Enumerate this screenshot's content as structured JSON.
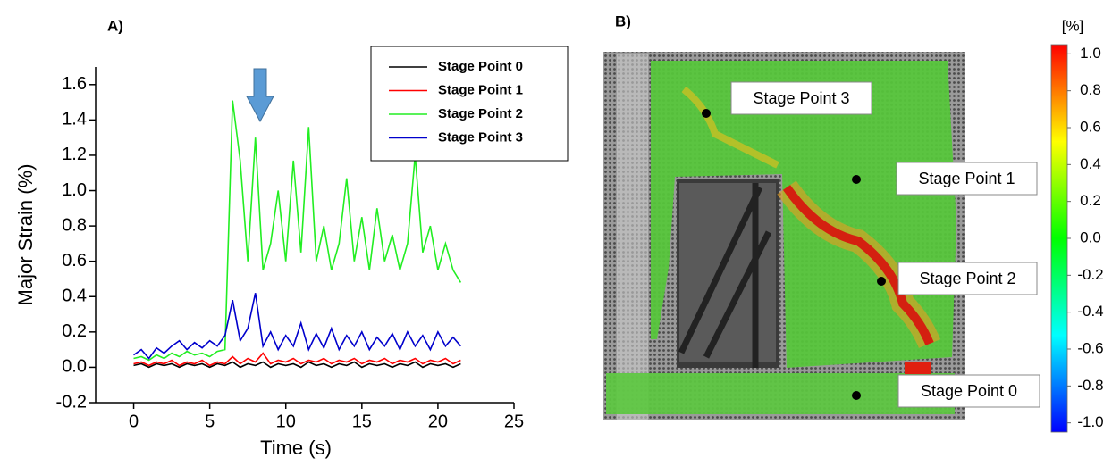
{
  "chart_data": [
    {
      "type": "line",
      "label": "A)",
      "xlabel": "Time (s)",
      "ylabel": "Major Strain (%)",
      "x": [
        0,
        0.5,
        1,
        1.5,
        2,
        2.5,
        3,
        3.5,
        4,
        4.5,
        5,
        5.5,
        6,
        6.5,
        7,
        7.5,
        8,
        8.5,
        9,
        9.5,
        10,
        10.5,
        11,
        11.5,
        12,
        12.5,
        13,
        13.5,
        14,
        14.5,
        15,
        15.5,
        16,
        16.5,
        17,
        17.5,
        18,
        18.5,
        19,
        19.5,
        20,
        20.5,
        21,
        21.5
      ],
      "series": [
        {
          "name": "Stage Point 0",
          "color": "#000000",
          "values": [
            0.01,
            0.02,
            0.0,
            0.02,
            0.01,
            0.02,
            0.0,
            0.02,
            0.01,
            0.02,
            0.0,
            0.02,
            0.01,
            0.03,
            0.0,
            0.02,
            0.01,
            0.03,
            0.0,
            0.02,
            0.01,
            0.02,
            0.0,
            0.03,
            0.01,
            0.02,
            0.0,
            0.02,
            0.01,
            0.03,
            0.0,
            0.02,
            0.01,
            0.02,
            0.0,
            0.02,
            0.01,
            0.03,
            0.0,
            0.02,
            0.01,
            0.02,
            0.0,
            0.02
          ]
        },
        {
          "name": "Stage Point 1",
          "color": "#ff0000",
          "values": [
            0.02,
            0.03,
            0.01,
            0.03,
            0.02,
            0.04,
            0.01,
            0.03,
            0.02,
            0.04,
            0.01,
            0.03,
            0.02,
            0.06,
            0.02,
            0.05,
            0.03,
            0.08,
            0.02,
            0.04,
            0.03,
            0.05,
            0.02,
            0.04,
            0.03,
            0.05,
            0.02,
            0.04,
            0.03,
            0.05,
            0.02,
            0.04,
            0.03,
            0.05,
            0.02,
            0.04,
            0.03,
            0.05,
            0.02,
            0.04,
            0.03,
            0.05,
            0.02,
            0.04
          ]
        },
        {
          "name": "Stage Point 2",
          "color": "#22ee22",
          "values": [
            0.05,
            0.06,
            0.04,
            0.07,
            0.05,
            0.08,
            0.06,
            0.09,
            0.07,
            0.08,
            0.06,
            0.09,
            0.1,
            1.51,
            1.17,
            0.6,
            1.3,
            0.55,
            0.7,
            1.0,
            0.6,
            1.17,
            0.65,
            1.36,
            0.6,
            0.8,
            0.55,
            0.7,
            1.07,
            0.6,
            0.85,
            0.55,
            0.9,
            0.6,
            0.75,
            0.55,
            0.7,
            1.2,
            0.65,
            0.8,
            0.55,
            0.7,
            0.55,
            0.48
          ]
        },
        {
          "name": "Stage Point 3",
          "color": "#0000cc",
          "values": [
            0.07,
            0.1,
            0.05,
            0.11,
            0.08,
            0.12,
            0.15,
            0.1,
            0.14,
            0.11,
            0.15,
            0.12,
            0.18,
            0.38,
            0.15,
            0.22,
            0.42,
            0.12,
            0.2,
            0.1,
            0.18,
            0.12,
            0.25,
            0.1,
            0.19,
            0.11,
            0.22,
            0.1,
            0.18,
            0.12,
            0.2,
            0.1,
            0.17,
            0.12,
            0.19,
            0.1,
            0.2,
            0.12,
            0.18,
            0.1,
            0.2,
            0.12,
            0.17,
            0.12
          ]
        }
      ],
      "xlim": [
        -2.5,
        25
      ],
      "xticks": [
        0,
        5,
        10,
        15,
        20,
        25
      ],
      "ylim": [
        -0.2,
        1.7
      ],
      "yticks": [
        -0.2,
        {
          "value": 0,
          "label": "0.0"
        },
        0.2,
        0.4,
        0.6,
        0.8,
        {
          "value": 1,
          "label": "1.0"
        },
        1.2,
        1.4,
        1.6
      ],
      "legend": "upper right"
    },
    {
      "type": "colorbar-image",
      "label": "B)",
      "colorbar_label": "[%]",
      "annotations": [
        "Stage Point 3",
        "Stage Point 1",
        "Stage Point 2",
        "Stage Point 0"
      ],
      "colormap": [
        "#0000ff",
        "#00ffff",
        "#00ff00",
        "#ffff00",
        "#ff0000"
      ],
      "clim": [
        -1.05,
        1.05
      ],
      "ticks": [
        {
          "value": 1,
          "label": "1.0"
        },
        0.8,
        0.6,
        0.4,
        0.2,
        {
          "value": 0,
          "label": "0.0"
        },
        -0.2,
        -0.4,
        -0.6,
        -0.8,
        {
          "value": -1,
          "label": "-1.0"
        }
      ]
    }
  ]
}
